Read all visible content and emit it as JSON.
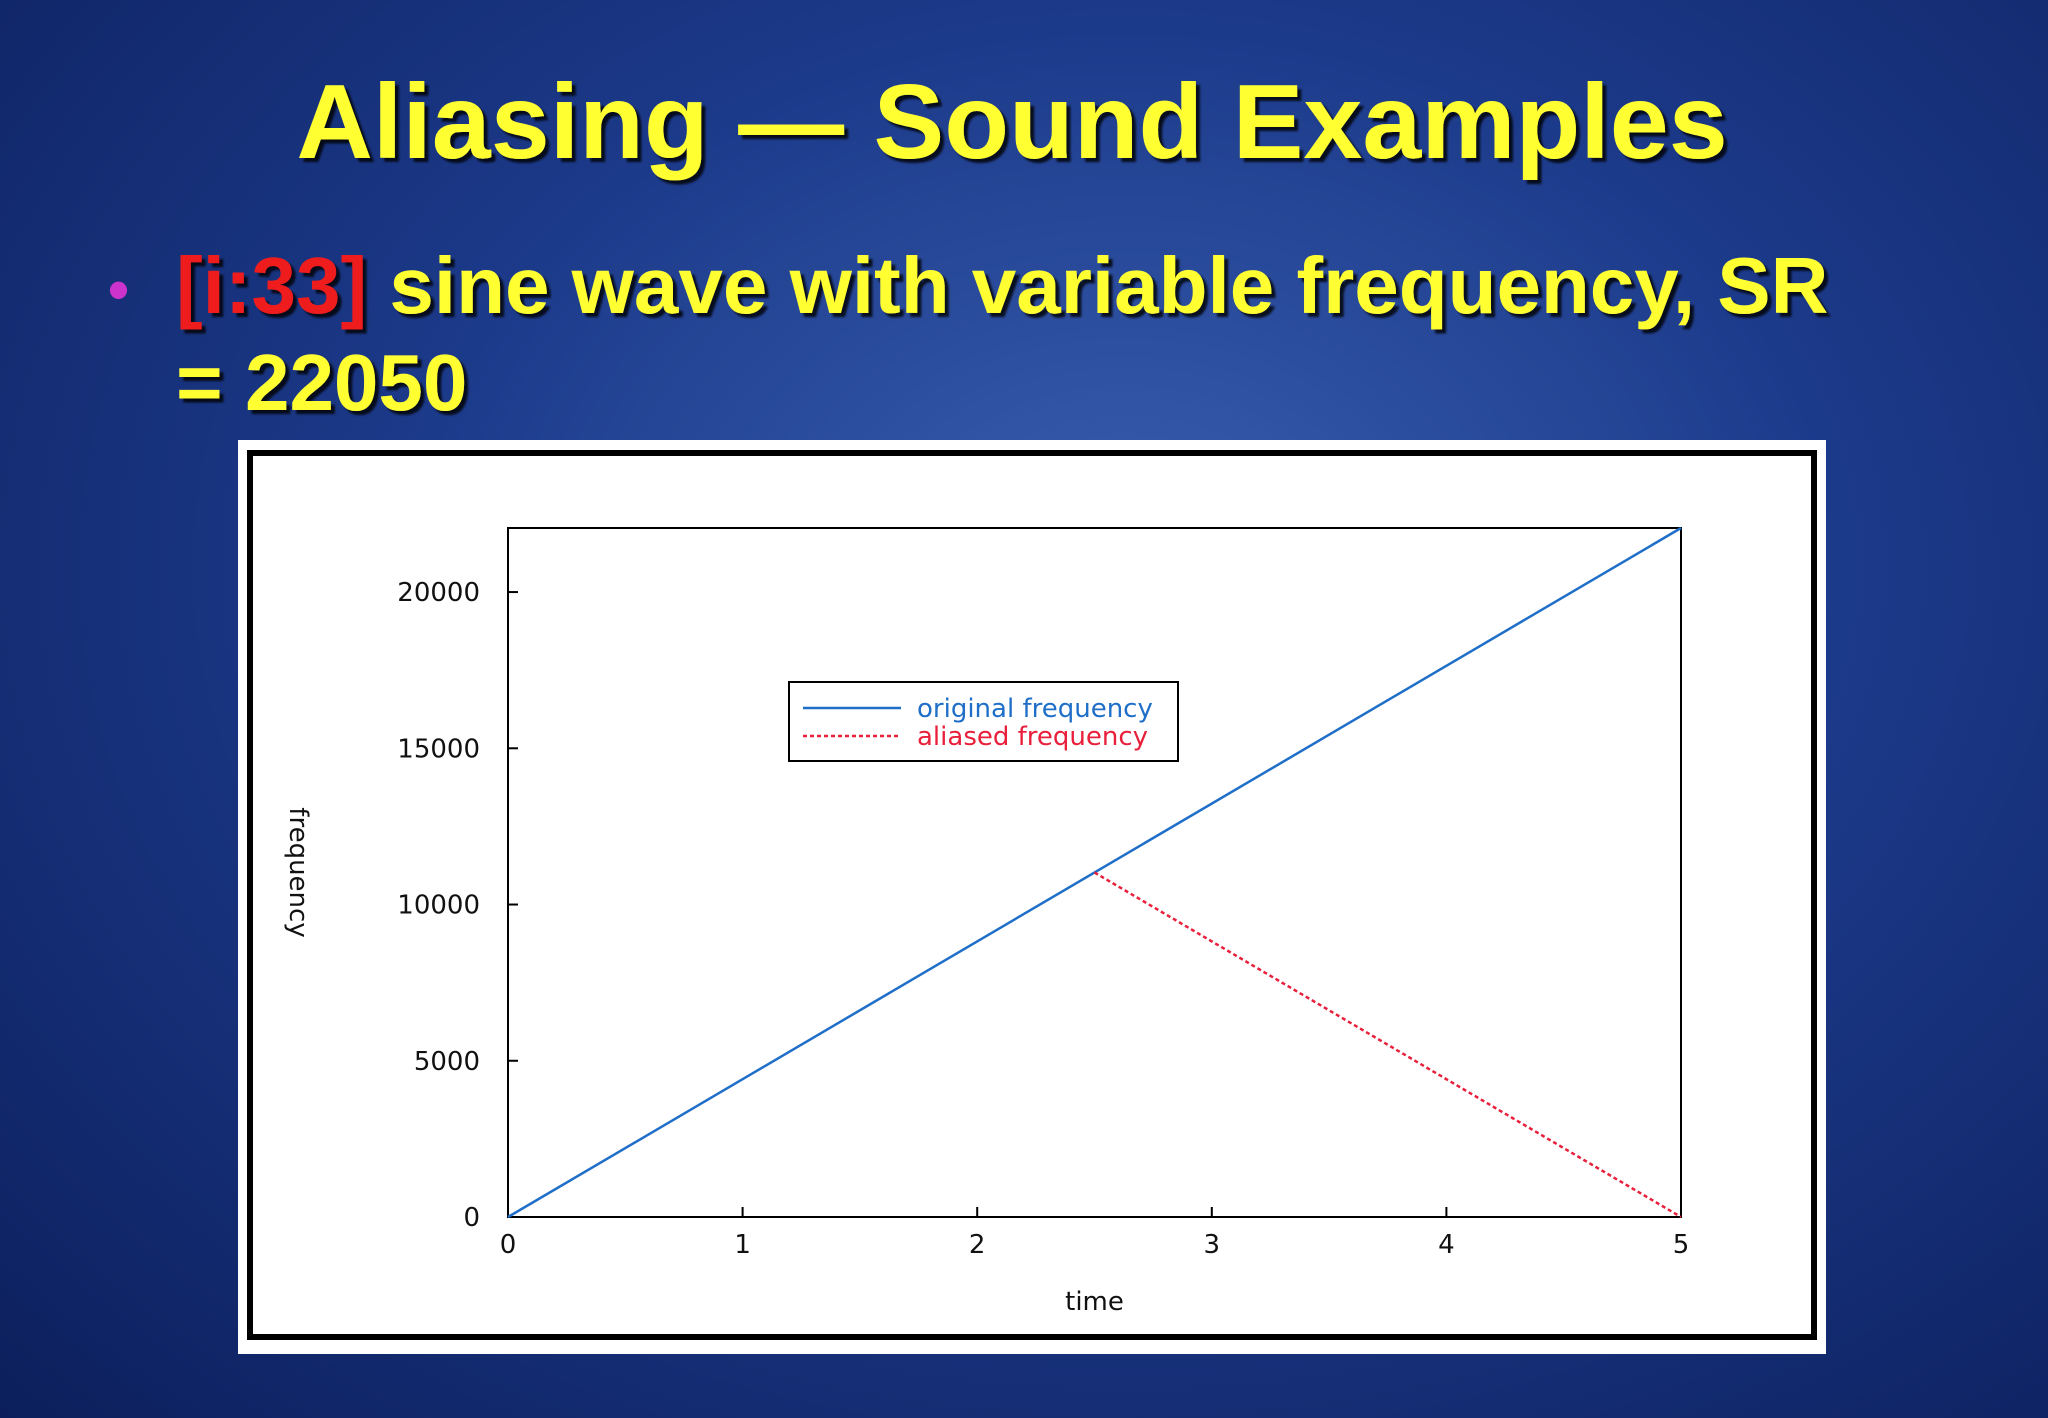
{
  "slide": {
    "title": "Aliasing — Sound Examples",
    "bullet": "•",
    "bullet_tag": "[i:33]",
    "bullet_text": " sine wave with variable frequency, SR",
    "bullet_text_2": "= 22050"
  },
  "chart_data": {
    "type": "line",
    "xlabel": "time",
    "ylabel": "frequency",
    "series": [
      {
        "name": "original frequency",
        "color": "#1f6fc8",
        "style": "solid",
        "x": [
          0,
          5
        ],
        "values": [
          0,
          22050
        ]
      },
      {
        "name": "aliased frequency",
        "color": "#e8203c",
        "style": "dashed",
        "x": [
          2.5,
          5
        ],
        "values": [
          11025,
          0
        ]
      }
    ],
    "xlim": [
      0,
      5
    ],
    "xticks": [
      0,
      1,
      2,
      3,
      4,
      5
    ],
    "ylim": [
      0,
      22050
    ],
    "yticks": [
      0,
      5000,
      10000,
      15000,
      20000
    ],
    "grid": false,
    "legend": "upper-left"
  }
}
